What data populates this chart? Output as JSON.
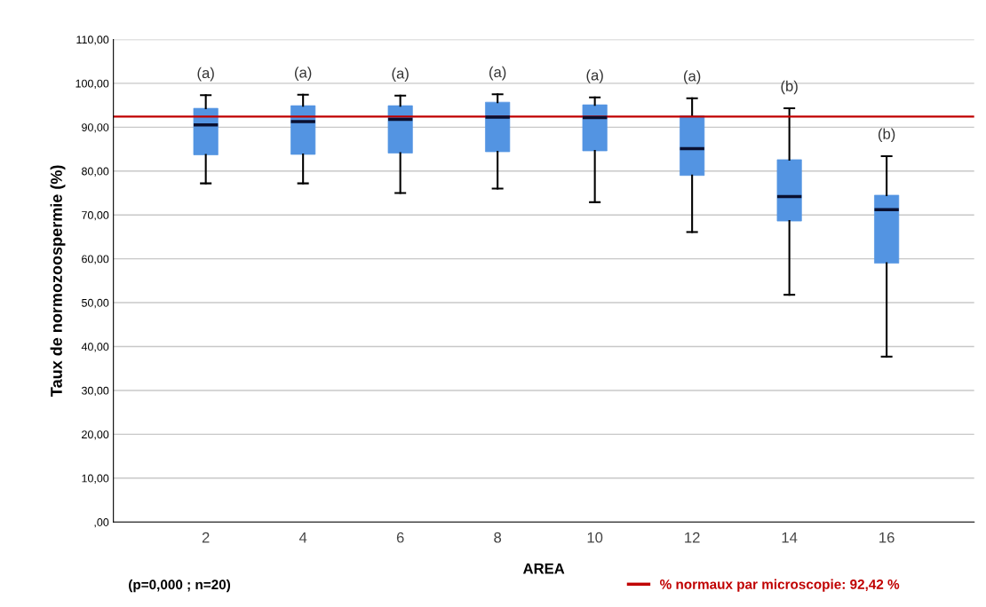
{
  "chart_data": {
    "type": "box",
    "xlabel": "AREA",
    "ylabel": "Taux de normozoospermie (%)",
    "categories": [
      "2",
      "4",
      "6",
      "8",
      "10",
      "12",
      "14",
      "16"
    ],
    "series": [
      {
        "color": "#5394e2",
        "boxes": [
          {
            "low": 77.2,
            "q1": 83.7,
            "median": 90.5,
            "q3": 94.3,
            "high": 97.3
          },
          {
            "low": 77.2,
            "q1": 83.8,
            "median": 91.3,
            "q3": 94.9,
            "high": 97.4
          },
          {
            "low": 75.0,
            "q1": 84.1,
            "median": 91.8,
            "q3": 94.9,
            "high": 97.2
          },
          {
            "low": 76.0,
            "q1": 84.4,
            "median": 92.3,
            "q3": 95.7,
            "high": 97.5
          },
          {
            "low": 72.9,
            "q1": 84.6,
            "median": 92.2,
            "q3": 95.1,
            "high": 96.8
          },
          {
            "low": 66.1,
            "q1": 79.0,
            "median": 85.1,
            "q3": 92.6,
            "high": 96.6
          },
          {
            "low": 51.8,
            "q1": 68.6,
            "median": 74.2,
            "q3": 82.6,
            "high": 94.3
          },
          {
            "low": 37.7,
            "q1": 59.0,
            "median": 71.2,
            "q3": 74.5,
            "high": 83.4
          }
        ]
      }
    ],
    "ylim": [
      0,
      110
    ],
    "yticks": [
      {
        "value": 0,
        "label": ",00"
      },
      {
        "value": 10,
        "label": "10,00"
      },
      {
        "value": 20,
        "label": "20,00"
      },
      {
        "value": 30,
        "label": "30,00"
      },
      {
        "value": 40,
        "label": "40,00"
      },
      {
        "value": 50,
        "label": "50,00"
      },
      {
        "value": 60,
        "label": "60,00"
      },
      {
        "value": 70,
        "label": "70,00"
      },
      {
        "value": 80,
        "label": "80,00"
      },
      {
        "value": 90,
        "label": "90,00"
      },
      {
        "value": 100,
        "label": "100,00"
      },
      {
        "value": 110,
        "label": "110,00"
      }
    ],
    "grid": "y",
    "ref_lines": [
      {
        "axis": "y",
        "value": 92.42,
        "label": "% normaux par microscopie: 92,42 %",
        "color": "#c00000"
      }
    ],
    "annotations": [
      "(a)",
      "(a)",
      "(a)",
      "(a)",
      "(a)",
      "(a)",
      "(b)",
      "(b)",
      "(p=0,000 ; n=20)"
    ]
  }
}
